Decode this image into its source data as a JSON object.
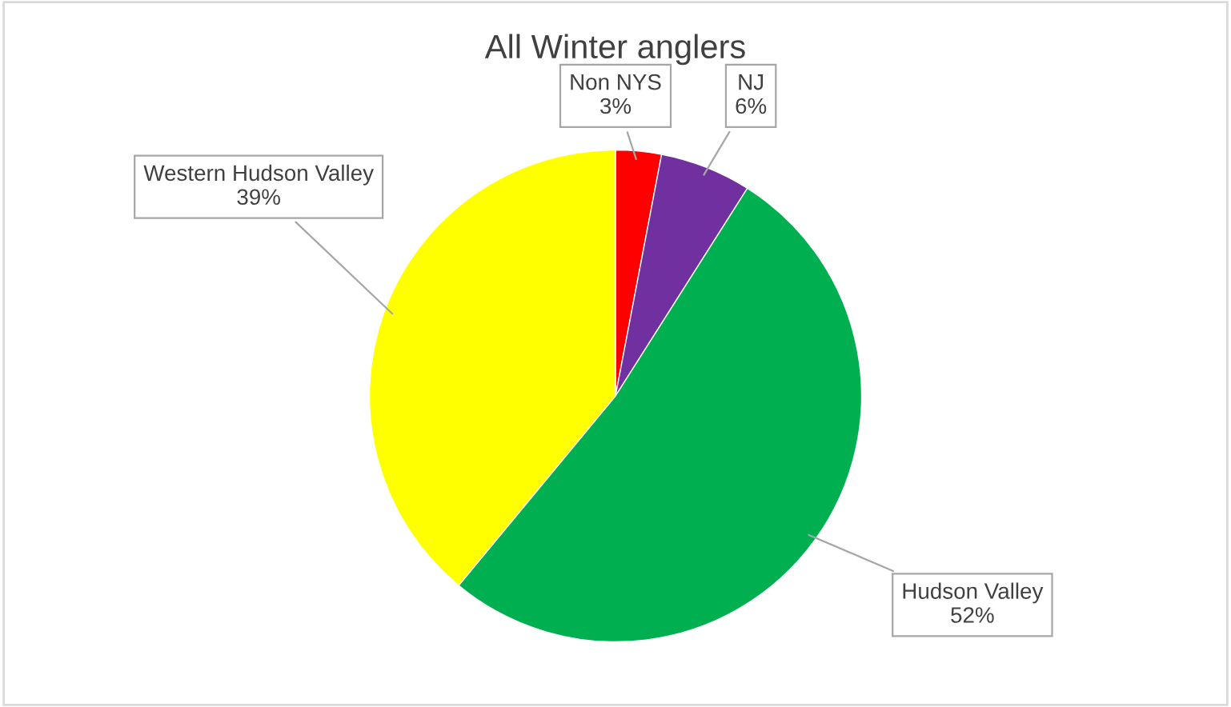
{
  "chart_data": {
    "type": "pie",
    "title": "All Winter anglers",
    "categories": [
      "Non NYS",
      "NJ",
      "Hudson Valley",
      "Western Hudson Valley"
    ],
    "values": [
      3,
      6,
      52,
      39
    ],
    "colors": [
      "#ff0000",
      "#7030a0",
      "#00b050",
      "#ffff00"
    ],
    "value_labels": [
      "3%",
      "6%",
      "52%",
      "39%"
    ],
    "legend": false
  }
}
